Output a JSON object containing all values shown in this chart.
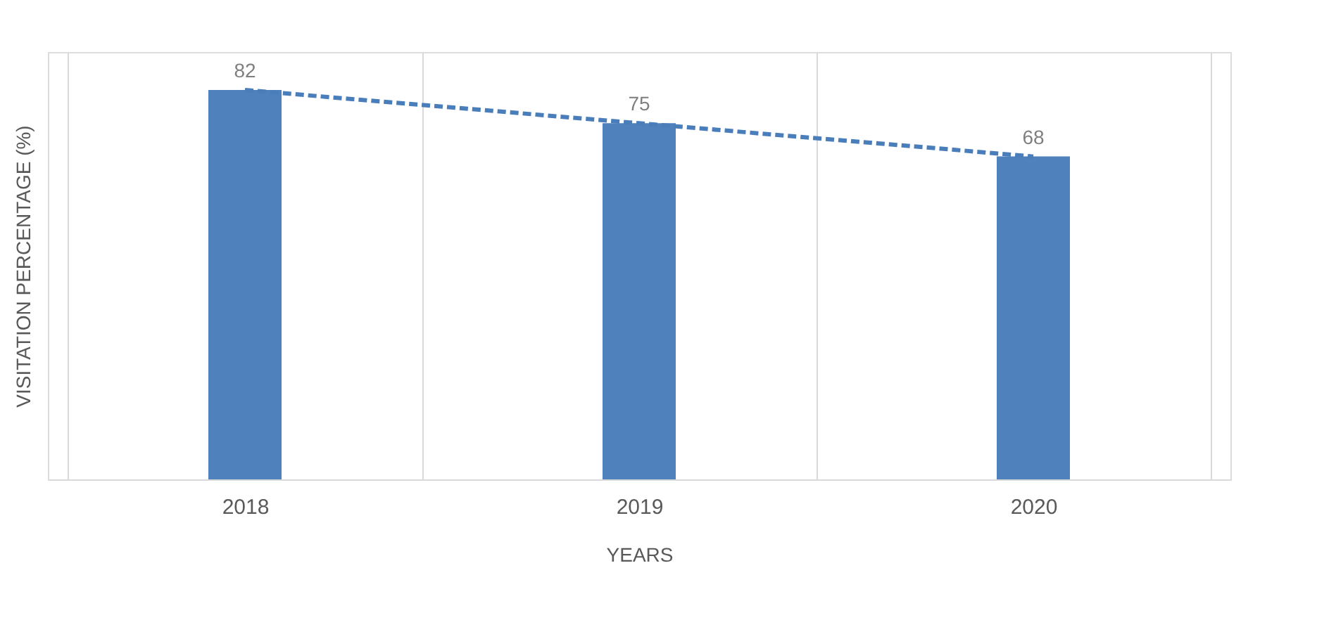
{
  "chart_data": {
    "type": "bar",
    "xlabel": "YEARS",
    "ylabel": "VISITATION PERCENTAGE (%)",
    "categories": [
      "2018",
      "2019",
      "2020"
    ],
    "series": [
      {
        "color": "#4f81bd",
        "values": [
          82,
          75,
          68
        ],
        "value_labels": [
          "82",
          "75",
          "68"
        ]
      },
      {
        "type": "line",
        "color": "#4a7ebb",
        "line_style": "dashed",
        "values": [
          82,
          75,
          68
        ]
      }
    ],
    "ylim": [
      0,
      90
    ],
    "tick_labels": "x",
    "grid": "x"
  }
}
